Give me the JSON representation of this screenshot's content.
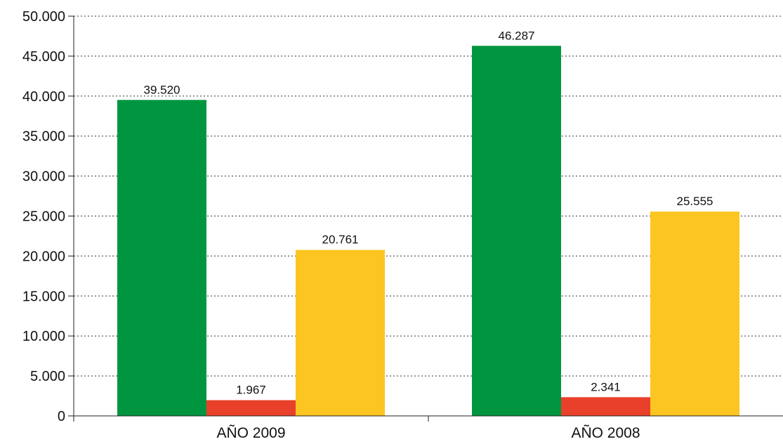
{
  "chart_data": {
    "type": "bar",
    "categories": [
      "AÑO 2009",
      "AÑO 2008"
    ],
    "series": [
      {
        "values": [
          39520,
          46287
        ],
        "labels": [
          "39.520",
          "46.287"
        ],
        "color": "#00963f"
      },
      {
        "values": [
          1967,
          2341
        ],
        "labels": [
          "1.967",
          "2.341"
        ],
        "color": "#e8402a"
      },
      {
        "values": [
          20761,
          25555
        ],
        "labels": [
          "20.761",
          "25.555"
        ],
        "color": "#fdc521"
      }
    ],
    "ylim": [
      0,
      50000
    ],
    "y_ticks": [
      {
        "value": 0,
        "label": "0"
      },
      {
        "value": 5000,
        "label": "5.000"
      },
      {
        "value": 10000,
        "label": "10.000"
      },
      {
        "value": 15000,
        "label": "15.000"
      },
      {
        "value": 20000,
        "label": "20.000"
      },
      {
        "value": 25000,
        "label": "25.000"
      },
      {
        "value": 30000,
        "label": "30.000"
      },
      {
        "value": 35000,
        "label": "35.000"
      },
      {
        "value": 40000,
        "label": "40.000"
      },
      {
        "value": 45000,
        "label": "45.000"
      },
      {
        "value": 50000,
        "label": "50.000"
      }
    ],
    "grid": "horizontal-dotted",
    "legend": "none"
  }
}
